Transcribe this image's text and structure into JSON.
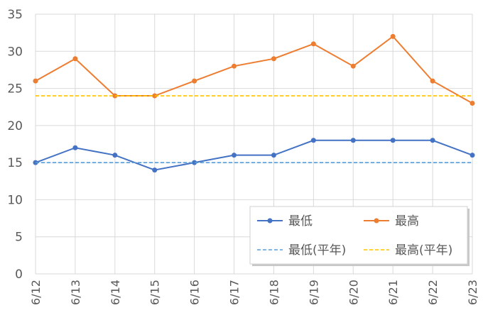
{
  "chart_data": {
    "type": "line",
    "title": "",
    "xlabel": "",
    "ylabel": "",
    "categories": [
      "6/12",
      "6/13",
      "6/14",
      "6/15",
      "6/16",
      "6/17",
      "6/18",
      "6/19",
      "6/20",
      "6/21",
      "6/22",
      "6/23"
    ],
    "ylim": [
      0,
      35
    ],
    "yticks": [
      0,
      5,
      10,
      15,
      20,
      25,
      30,
      35
    ],
    "grid": true,
    "legend_position": "bottom-right",
    "series": [
      {
        "name": "最低",
        "values": [
          15,
          17,
          16,
          14,
          15,
          16,
          16,
          18,
          18,
          18,
          18,
          16
        ],
        "color": "#4472C4",
        "style": "solid-markers"
      },
      {
        "name": "最高",
        "values": [
          26,
          29,
          24,
          24,
          26,
          28,
          29,
          31,
          28,
          32,
          26,
          23
        ],
        "color": "#ED7D31",
        "style": "solid-markers"
      },
      {
        "name": "最低(平年)",
        "values": [
          15,
          15,
          15,
          15,
          15,
          15,
          15,
          15,
          15,
          15,
          15,
          15
        ],
        "color": "#5B9BD5",
        "style": "dashed"
      },
      {
        "name": "最高(平年)",
        "values": [
          24,
          24,
          24,
          24,
          24,
          24,
          24,
          24,
          24,
          24,
          24,
          24
        ],
        "color": "#FFC000",
        "style": "dashed"
      }
    ]
  }
}
